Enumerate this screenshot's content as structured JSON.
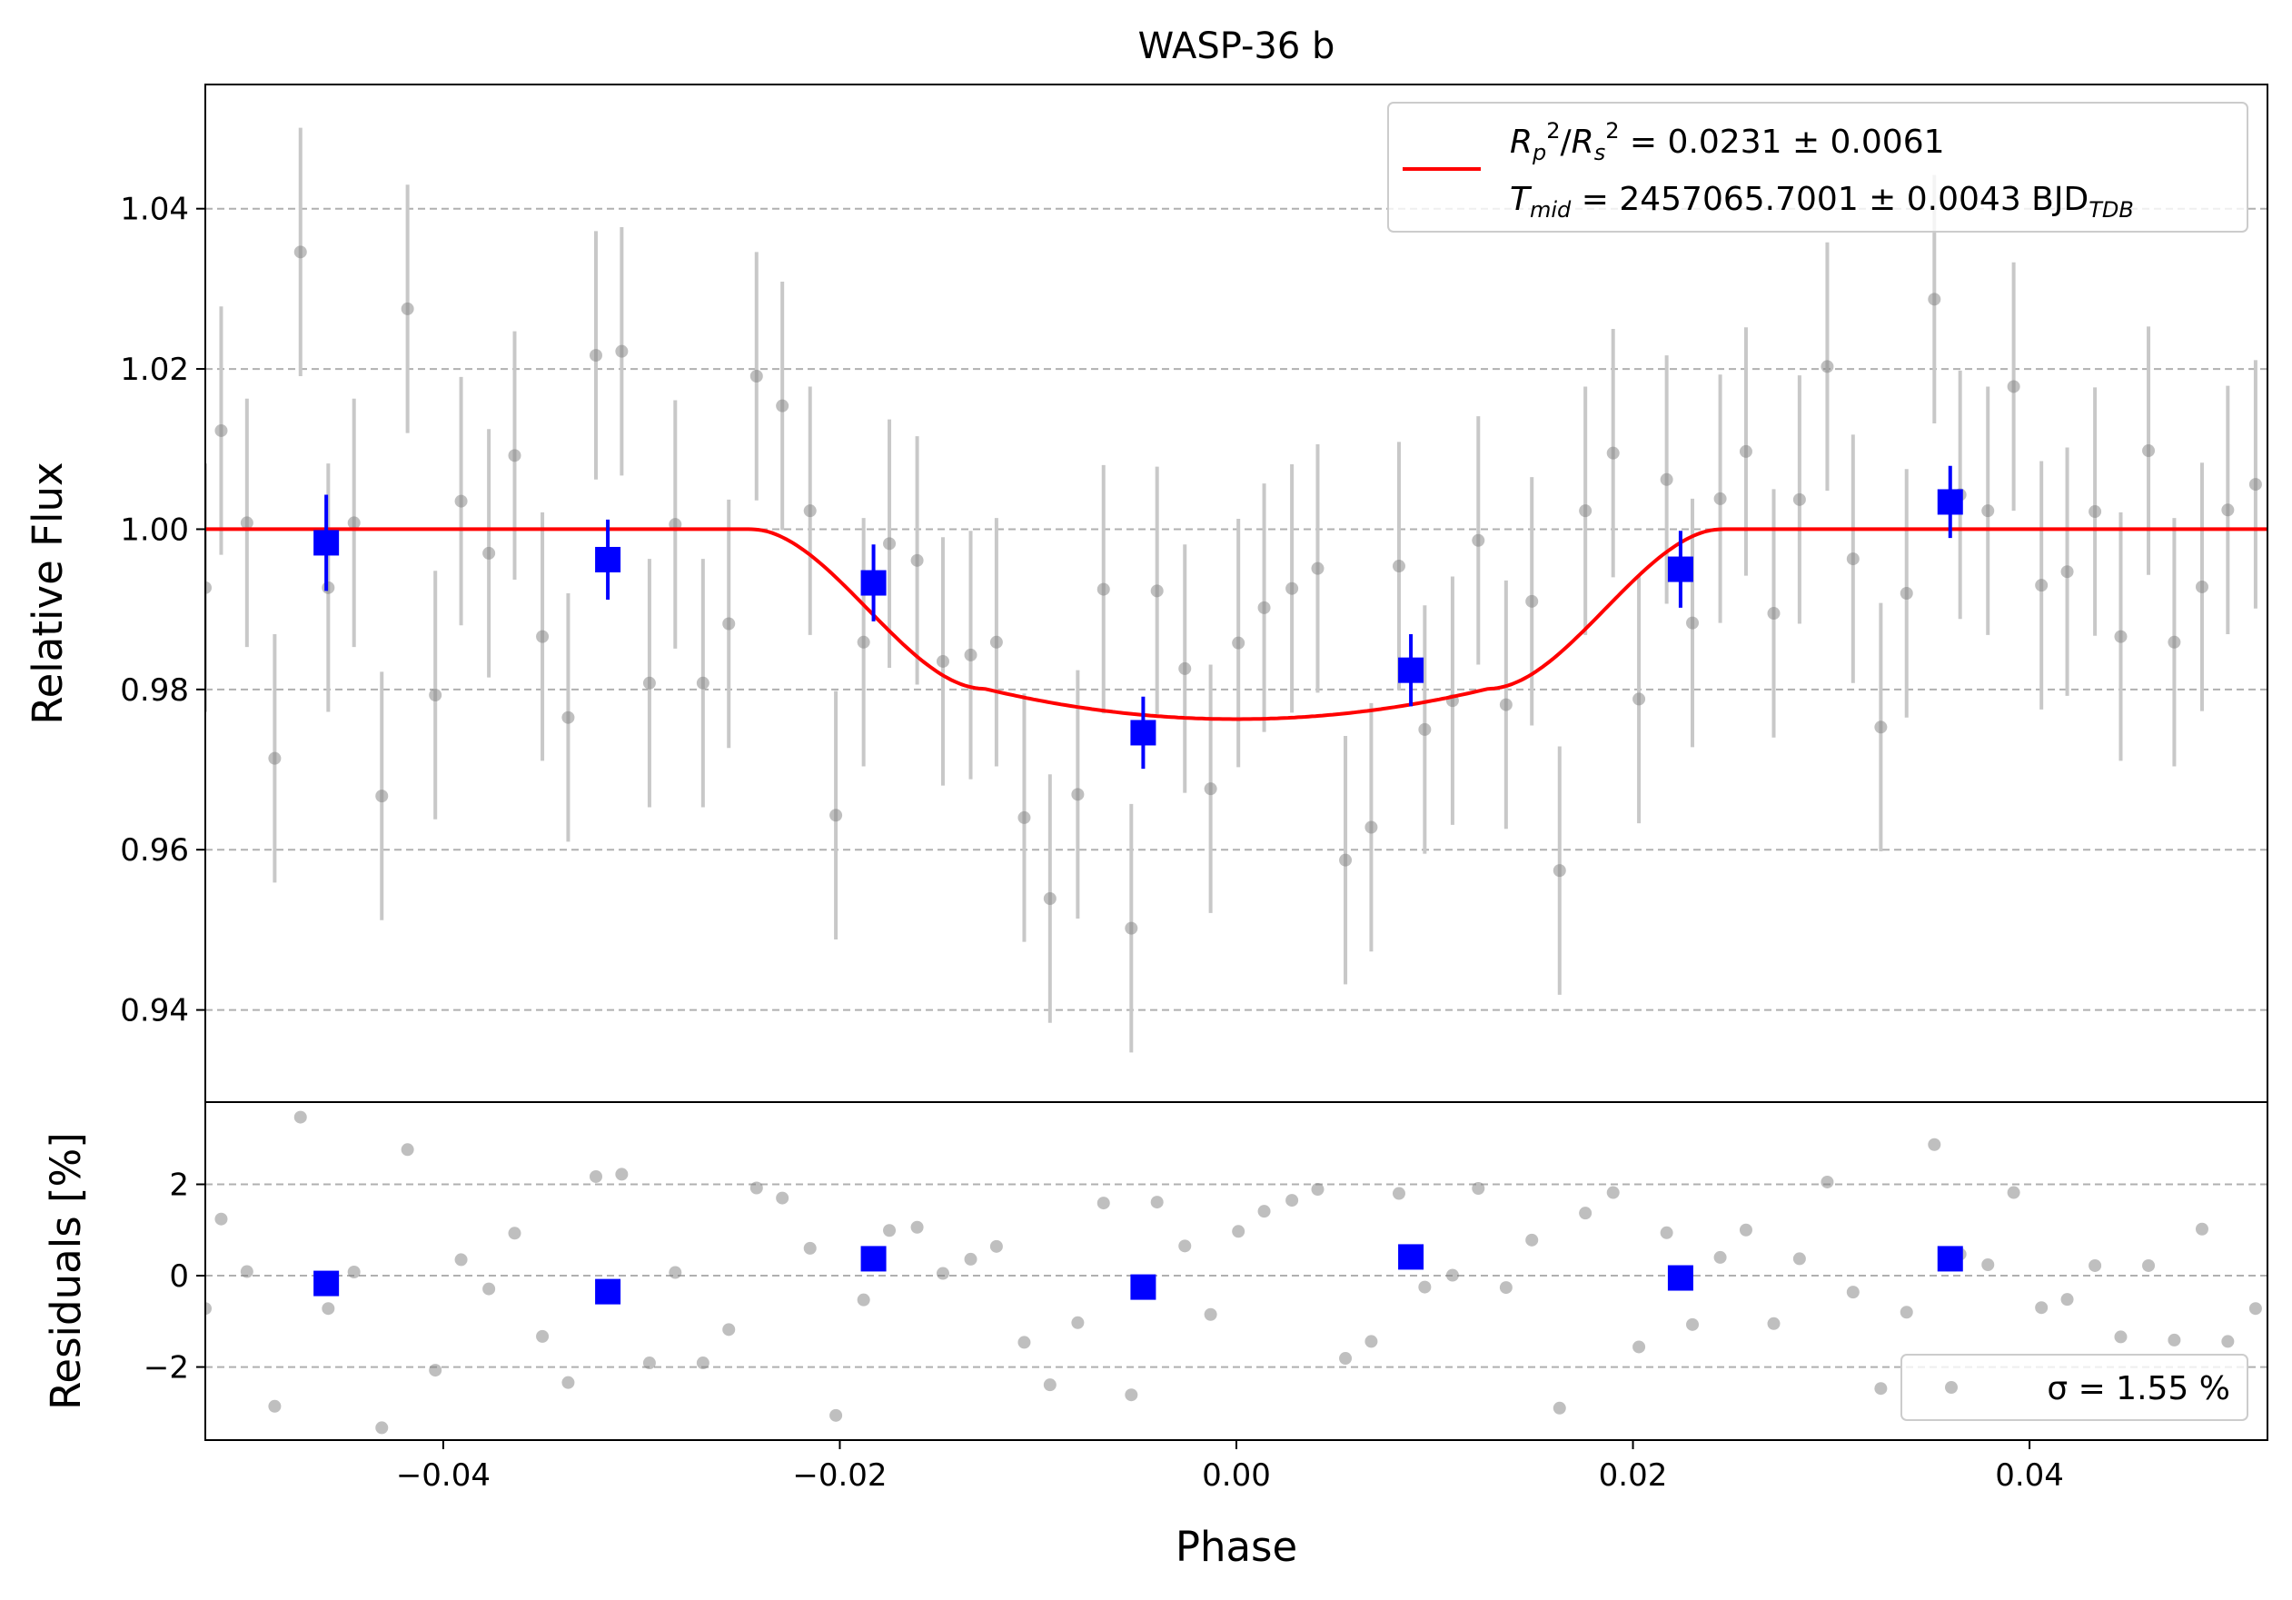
{
  "chart_data": [
    {
      "type": "scatter",
      "panel": "main",
      "title": "WASP-36 b",
      "xlabel": "",
      "ylabel": "Relative Flux",
      "xlim": [
        -0.052,
        0.052
      ],
      "ylim": [
        0.9285,
        1.0555
      ],
      "yticks": [
        0.94,
        0.96,
        0.98,
        1.0,
        1.02,
        1.04
      ],
      "ytick_labels": [
        "0.94",
        "0.96",
        "0.98",
        "1.00",
        "1.02",
        "1.04"
      ],
      "grid": "horizontal dashed",
      "legend_placement": "top-right",
      "legend": {
        "line_label_1": "R_p^2/R_s^2 = 0.0231 ± 0.0061",
        "line_label_2": "T_mid = 2457065.7001 ± 0.0043 BJD_TDB"
      },
      "series": [
        {
          "kind": "raw-points",
          "color": "#808080",
          "errorbar_color": "#c8c8c8",
          "yerr": 0.0155,
          "x": [
            -0.052,
            -0.0512,
            -0.0499,
            -0.0485,
            -0.0472,
            -0.0458,
            -0.0445,
            -0.0431,
            -0.0418,
            -0.0404,
            -0.0391,
            -0.0377,
            -0.0364,
            -0.035,
            -0.0337,
            -0.0323,
            -0.031,
            -0.0296,
            -0.0283,
            -0.0269,
            -0.0256,
            -0.0242,
            -0.0229,
            -0.0215,
            -0.0202,
            -0.0188,
            -0.0175,
            -0.0161,
            -0.0148,
            -0.0134,
            -0.0121,
            -0.0107,
            -0.0094,
            -0.008,
            -0.0067,
            -0.0053,
            -0.004,
            -0.0026,
            -0.0013,
            0.0001,
            0.0014,
            0.0028,
            0.0041,
            0.0055,
            0.0068,
            0.0082,
            0.0095,
            0.0109,
            0.0122,
            0.0136,
            0.0149,
            0.0163,
            0.0176,
            0.019,
            0.0203,
            0.0217,
            0.023,
            0.0244,
            0.0257,
            0.0271,
            0.0284,
            0.0298,
            0.0311,
            0.0325,
            0.0338,
            0.0352,
            0.0365,
            0.0379,
            0.0392,
            0.0406,
            0.0419,
            0.0433,
            0.0446,
            0.046,
            0.0473,
            0.0487,
            0.05,
            0.0514
          ],
          "y": [
            0.9927,
            1.0123,
            1.0008,
            0.9714,
            1.0346,
            0.9927,
            1.0008,
            0.9667,
            1.0275,
            0.9793,
            1.0035,
            0.997,
            1.0092,
            0.9866,
            0.9765,
            1.0217,
            1.0222,
            0.9808,
            1.0006,
            0.9808,
            0.9882,
            1.0191,
            1.0154,
            1.0023,
            0.9643,
            0.9859,
            0.9982,
            0.9961,
            0.9835,
            0.9843,
            0.9859,
            0.964,
            0.9539,
            0.9669,
            0.9925,
            0.9502,
            0.9923,
            0.9826,
            0.9676,
            0.9858,
            0.9902,
            0.9926,
            0.9951,
            0.9587,
            0.9628,
            0.9954,
            0.975,
            0.9786,
            0.9986,
            0.9781,
            0.991,
            0.9574,
            1.0023,
            1.0095,
            0.9788,
            1.0062,
            0.9883,
            1.0038,
            1.0097,
            0.9895,
            1.0037,
            1.0203,
            0.9963,
            0.9753,
            0.992,
            1.0287,
            1.0043,
            1.0023,
            1.0178,
            0.993,
            0.9947,
            1.0022,
            0.9866,
            1.0098,
            0.9859,
            0.9928,
            1.0024,
            1.0056
          ]
        },
        {
          "kind": "binned-points",
          "color": "#0000ff",
          "x": [
            -0.0459,
            -0.0317,
            -0.0183,
            -0.0047,
            0.0088,
            0.0224,
            0.036
          ],
          "y": [
            0.9983,
            0.9962,
            0.9933,
            0.9746,
            0.9824,
            0.995,
            1.0034
          ],
          "yerr": [
            0.006,
            0.005,
            0.0048,
            0.0045,
            0.0045,
            0.0048,
            0.0045
          ]
        },
        {
          "kind": "model",
          "color": "#ff0000",
          "depth": 0.0237,
          "t1": 0.0245,
          "t2": 0.0127
        }
      ]
    },
    {
      "type": "scatter",
      "panel": "residuals",
      "xlabel": "Phase",
      "ylabel": "Residuals [%]",
      "xlim": [
        -0.052,
        0.052
      ],
      "ylim": [
        -3.6,
        3.8
      ],
      "yticks": [
        -2,
        0,
        2
      ],
      "ytick_labels": [
        "−2",
        "0",
        "2"
      ],
      "xticks": [
        -0.04,
        -0.02,
        0.0,
        0.02,
        0.04
      ],
      "xtick_labels": [
        "−0.04",
        "−0.02",
        "0.00",
        "0.02",
        "0.04"
      ],
      "grid": "horizontal dashed",
      "legend_placement": "bottom-right",
      "legend": {
        "label": "σ = 1.55 %"
      },
      "series": [
        {
          "kind": "raw-residuals",
          "color": "#808080",
          "x": [
            -0.052,
            -0.0512,
            -0.0499,
            -0.0485,
            -0.0472,
            -0.0458,
            -0.0445,
            -0.0431,
            -0.0418,
            -0.0404,
            -0.0391,
            -0.0377,
            -0.0364,
            -0.035,
            -0.0337,
            -0.0323,
            -0.031,
            -0.0296,
            -0.0283,
            -0.0269,
            -0.0256,
            -0.0242,
            -0.0229,
            -0.0215,
            -0.0202,
            -0.0188,
            -0.0175,
            -0.0161,
            -0.0148,
            -0.0134,
            -0.0121,
            -0.0107,
            -0.0094,
            -0.008,
            -0.0067,
            -0.0053,
            -0.004,
            -0.0026,
            -0.0013,
            0.0001,
            0.0014,
            0.0028,
            0.0041,
            0.0055,
            0.0068,
            0.0082,
            0.0095,
            0.0109,
            0.0122,
            0.0136,
            0.0149,
            0.0163,
            0.0176,
            0.019,
            0.0203,
            0.0217,
            0.023,
            0.0244,
            0.0257,
            0.0271,
            0.0284,
            0.0298,
            0.0311,
            0.0325,
            0.0338,
            0.0352,
            0.0365,
            0.0379,
            0.0392,
            0.0406,
            0.0419,
            0.0433,
            0.0446,
            0.046,
            0.0473,
            0.0487,
            0.05,
            0.0514
          ],
          "y": [
            -0.72,
            1.24,
            0.09,
            -2.86,
            3.47,
            -0.72,
            0.08,
            -3.33,
            2.76,
            -2.07,
            0.35,
            -0.29,
            0.93,
            -1.33,
            -2.34,
            2.17,
            2.22,
            -1.91,
            0.07,
            -1.91,
            -1.18,
            1.92,
            1.7,
            0.6,
            -3.06,
            -0.53,
            0.99,
            1.06,
            0.05,
            0.36,
            0.64,
            -1.46,
            -2.39,
            -1.03,
            1.59,
            -2.61,
            1.61,
            0.65,
            -0.85,
            0.97,
            1.41,
            1.65,
            1.89,
            -1.81,
            -1.44,
            1.8,
            -0.25,
            0.01,
            1.91,
            -0.26,
            0.78,
            -2.9,
            1.37,
            1.82,
            -1.56,
            0.94,
            -1.07,
            0.4,
            1.0,
            -1.05,
            0.37,
            2.05,
            -0.36,
            -2.47,
            -0.8,
            2.87,
            0.47,
            0.24,
            1.82,
            -0.7,
            -0.52,
            0.22,
            -1.34,
            0.22,
            -1.41,
            1.02,
            -1.44,
            -0.72
          ]
        },
        {
          "kind": "binned-residuals",
          "color": "#0000ff",
          "x": [
            -0.0459,
            -0.0317,
            -0.0183,
            -0.0047,
            0.0088,
            0.0224,
            0.036
          ],
          "y": [
            -0.17,
            -0.35,
            0.37,
            -0.25,
            0.41,
            -0.05,
            0.37
          ]
        }
      ]
    }
  ]
}
